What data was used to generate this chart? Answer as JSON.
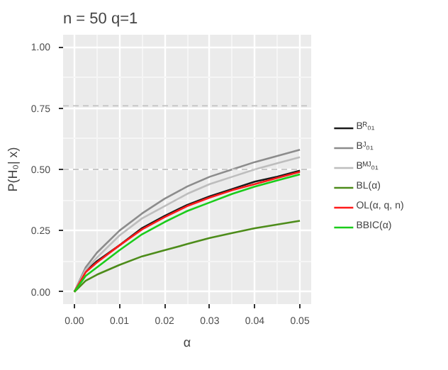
{
  "chart_data": {
    "type": "line",
    "title": "n = 50   q=1",
    "xlabel": "α",
    "ylabel": "P(H₀| x)",
    "x": [
      0,
      0.0025,
      0.005,
      0.01,
      0.015,
      0.02,
      0.025,
      0.03,
      0.035,
      0.04,
      0.045,
      0.05
    ],
    "series": [
      {
        "name": "Bᴿ₀₁",
        "color": "#1a1a1a",
        "values": [
          0,
          0.085,
          0.125,
          0.19,
          0.26,
          0.31,
          0.355,
          0.39,
          0.42,
          0.45,
          0.47,
          0.495
        ]
      },
      {
        "name": "Bᴶ₀₁",
        "color": "#8c8c8c",
        "values": [
          0,
          0.1,
          0.16,
          0.25,
          0.32,
          0.38,
          0.43,
          0.47,
          0.5,
          0.53,
          0.555,
          0.58
        ]
      },
      {
        "name": "Bᴹᴶ₀₁",
        "color": "#bdbdbd",
        "values": [
          0,
          0.09,
          0.14,
          0.23,
          0.3,
          0.35,
          0.4,
          0.44,
          0.47,
          0.5,
          0.525,
          0.55
        ]
      },
      {
        "name": "BL(α)",
        "color": "#4d8c1a",
        "values": [
          0,
          0.045,
          0.07,
          0.11,
          0.145,
          0.17,
          0.195,
          0.22,
          0.24,
          0.26,
          0.275,
          0.29
        ]
      },
      {
        "name": "OL(α, q, n)",
        "color": "#ff1a1a",
        "values": [
          0,
          0.08,
          0.12,
          0.19,
          0.255,
          0.305,
          0.35,
          0.385,
          0.415,
          0.44,
          0.465,
          0.49
        ]
      },
      {
        "name": "BBIC(α)",
        "color": "#1acc1a",
        "values": [
          0,
          0.065,
          0.1,
          0.17,
          0.235,
          0.285,
          0.33,
          0.365,
          0.4,
          0.43,
          0.455,
          0.48
        ]
      }
    ],
    "xlim": [
      -0.0025,
      0.0525
    ],
    "ylim": [
      -0.05,
      1.05
    ],
    "xticks": [
      {
        "value": 0,
        "label": "0.00"
      },
      {
        "value": 0.01,
        "label": "0.01"
      },
      {
        "value": 0.02,
        "label": "0.02"
      },
      {
        "value": 0.03,
        "label": "0.03"
      },
      {
        "value": 0.04,
        "label": "0.04"
      },
      {
        "value": 0.05,
        "label": "0.05"
      }
    ],
    "yticks": [
      {
        "value": 0,
        "label": "0.00"
      },
      {
        "value": 0.25,
        "label": "0.25"
      },
      {
        "value": 0.5,
        "label": "0.50"
      },
      {
        "value": 0.75,
        "label": "0.75"
      },
      {
        "value": 1,
        "label": "1.00"
      }
    ],
    "ref_lines": [
      {
        "axis": "y",
        "value": 0.76,
        "color": "#c8c8c8",
        "line_style": "dashed"
      },
      {
        "axis": "y",
        "value": 0.5,
        "color": "#c8c8c8",
        "line_style": "dashed"
      }
    ],
    "grid": true,
    "legend": "right",
    "marker": "none",
    "line_style": "solid"
  }
}
